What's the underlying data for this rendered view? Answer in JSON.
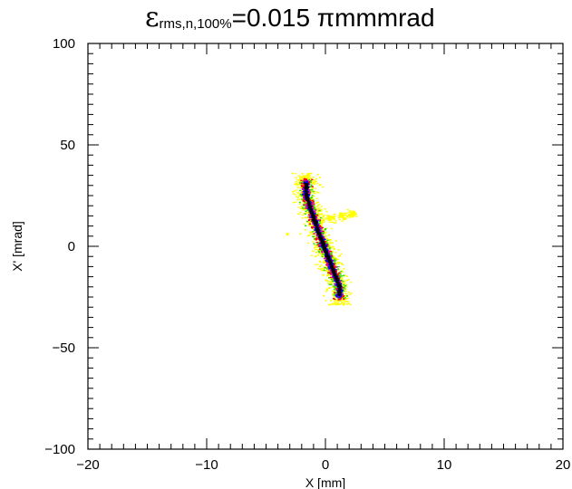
{
  "title": {
    "symbol": "ε",
    "subscript": "rms,n,100%",
    "value_text": "=0.015 ",
    "unit_text": "πmmmrad"
  },
  "chart_data": {
    "type": "scatter",
    "title": "εrms,n,100%=0.015 πmmmrad",
    "xlabel": "X [mm]",
    "ylabel": "X' [mrad]",
    "xlim": [
      -20,
      20
    ],
    "ylim": [
      -100,
      100
    ],
    "x_ticks": [
      -20,
      -10,
      0,
      10,
      20
    ],
    "x_tick_labels": [
      "−20",
      "−10",
      "0",
      "10",
      "20"
    ],
    "y_ticks": [
      -100,
      -50,
      0,
      50,
      100
    ],
    "y_tick_labels": [
      "−100",
      "−50",
      "0",
      "50",
      "100"
    ],
    "grid": false,
    "density_colors": [
      "#ffff00",
      "#33dd00",
      "#ff0000",
      "#cc00cc",
      "#0000ff",
      "#000000"
    ],
    "core_ridge": [
      {
        "x": -1.6,
        "y": 25
      },
      {
        "x": -1.2,
        "y": 18
      },
      {
        "x": -0.8,
        "y": 11
      },
      {
        "x": -0.4,
        "y": 4
      },
      {
        "x": 0.0,
        "y": -2
      },
      {
        "x": 0.4,
        "y": -8
      },
      {
        "x": 0.8,
        "y": -14
      },
      {
        "x": 1.2,
        "y": -20
      }
    ],
    "halo_extent": {
      "x_range": [
        -2.3,
        2.3
      ],
      "y_range": [
        -29,
        36
      ]
    },
    "wing_tail": [
      {
        "x": 0.5,
        "y": 14
      },
      {
        "x": 1.5,
        "y": 15
      },
      {
        "x": 2.3,
        "y": 16
      }
    ],
    "outlier": {
      "x": -3.2,
      "y": 6
    }
  }
}
